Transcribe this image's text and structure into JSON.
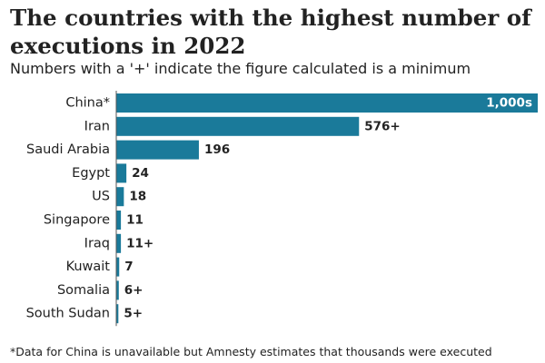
{
  "title": "The countries with the highest number of executions in 2022",
  "subtitle": "Numbers with a '+' indicate the figure calculated is a minimum",
  "footnote": "*Data for China is unavailable but Amnesty estimates that thousands were executed",
  "colors": {
    "bar": "#1a7a9a",
    "axis": "#555555",
    "text": "#222222",
    "label_inside": "#ffffff"
  },
  "chart_data": {
    "type": "bar",
    "orientation": "horizontal",
    "categories": [
      "China*",
      "Iran",
      "Saudi Arabia",
      "Egypt",
      "US",
      "Singapore",
      "Iraq",
      "Kuwait",
      "Somalia",
      "South Sudan"
    ],
    "values": [
      1000,
      576,
      196,
      24,
      18,
      11,
      11,
      7,
      6,
      5
    ],
    "value_labels": [
      "1,000s",
      "576+",
      "196",
      "24",
      "18",
      "11",
      "11+",
      "7",
      "6+",
      "5+"
    ],
    "xlim": [
      0,
      1000
    ],
    "grid": false,
    "legend": "none"
  }
}
